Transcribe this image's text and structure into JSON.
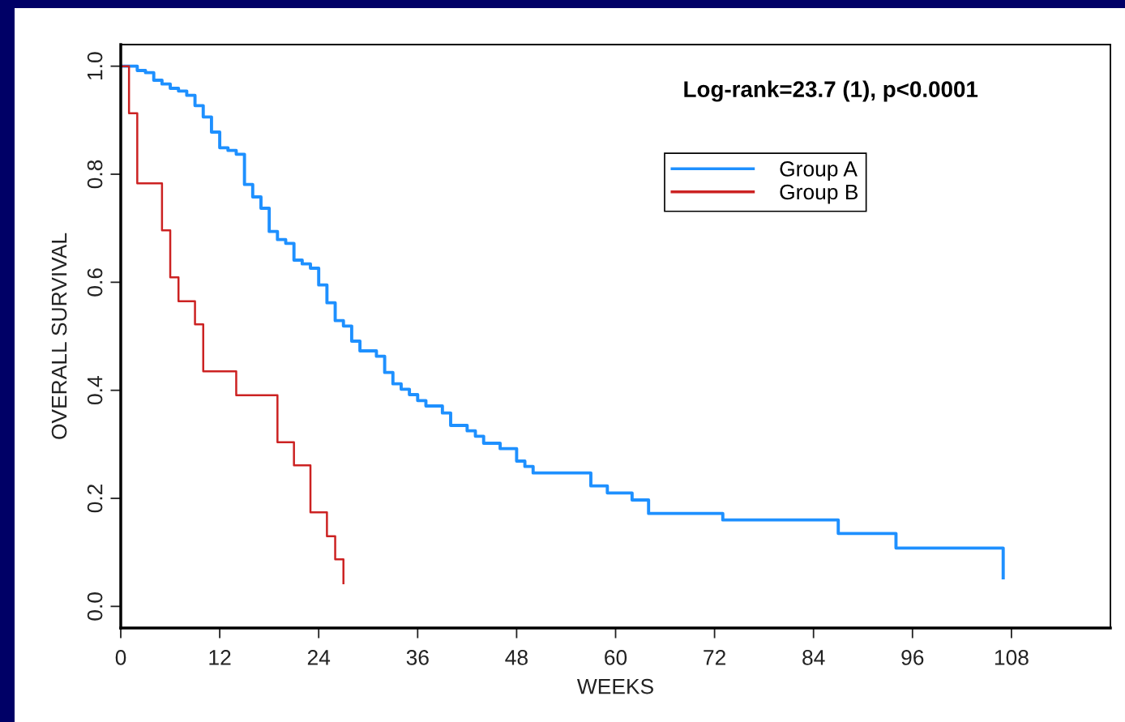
{
  "chart_data": {
    "type": "step",
    "xlabel": "WEEKS",
    "ylabel": "OVERALL SURVIVAL",
    "annotations": [
      "Log-rank=23.7 (1), p<0.0001"
    ],
    "series": [
      {
        "name": "Group A",
        "color": "#1e90ff",
        "x": [
          0,
          2,
          3,
          4,
          5,
          6,
          7,
          8,
          9,
          10,
          11,
          12,
          13,
          14,
          15,
          16,
          17,
          18,
          19,
          20,
          21,
          22,
          23,
          24,
          25,
          26,
          27,
          28,
          29,
          31,
          32,
          33,
          34,
          35,
          36,
          37,
          39,
          40,
          42,
          43,
          44,
          46,
          48,
          49,
          50,
          57,
          59,
          62,
          64,
          73,
          87,
          94,
          107
        ],
        "values": [
          1.0,
          0.992,
          0.988,
          0.974,
          0.967,
          0.959,
          0.954,
          0.946,
          0.927,
          0.906,
          0.878,
          0.849,
          0.844,
          0.837,
          0.781,
          0.758,
          0.737,
          0.694,
          0.679,
          0.672,
          0.641,
          0.634,
          0.626,
          0.595,
          0.562,
          0.529,
          0.519,
          0.491,
          0.473,
          0.463,
          0.433,
          0.412,
          0.402,
          0.392,
          0.381,
          0.371,
          0.358,
          0.335,
          0.325,
          0.315,
          0.302,
          0.292,
          0.269,
          0.259,
          0.247,
          0.223,
          0.21,
          0.197,
          0.172,
          0.16,
          0.135,
          0.108,
          0.053
        ]
      },
      {
        "name": "Group B",
        "color": "#cc2222",
        "x": [
          0,
          1,
          2,
          5,
          6,
          7,
          9,
          10,
          14,
          19,
          21,
          23,
          25,
          26,
          27
        ],
        "values": [
          1.0,
          0.913,
          0.783,
          0.696,
          0.609,
          0.565,
          0.522,
          0.435,
          0.391,
          0.304,
          0.261,
          0.174,
          0.13,
          0.087,
          0.043
        ]
      }
    ],
    "xlim": [
      0,
      120
    ],
    "xticks": [
      0,
      12,
      24,
      36,
      48,
      60,
      72,
      84,
      96,
      108
    ],
    "ylim": [
      -0.04,
      1.04
    ],
    "yticks": [
      {
        "value": 0,
        "label": "0.0"
      },
      0.2,
      0.4,
      0.6,
      0.8,
      {
        "value": 1,
        "label": "1.0"
      }
    ],
    "legend": "top right",
    "grid": false
  }
}
